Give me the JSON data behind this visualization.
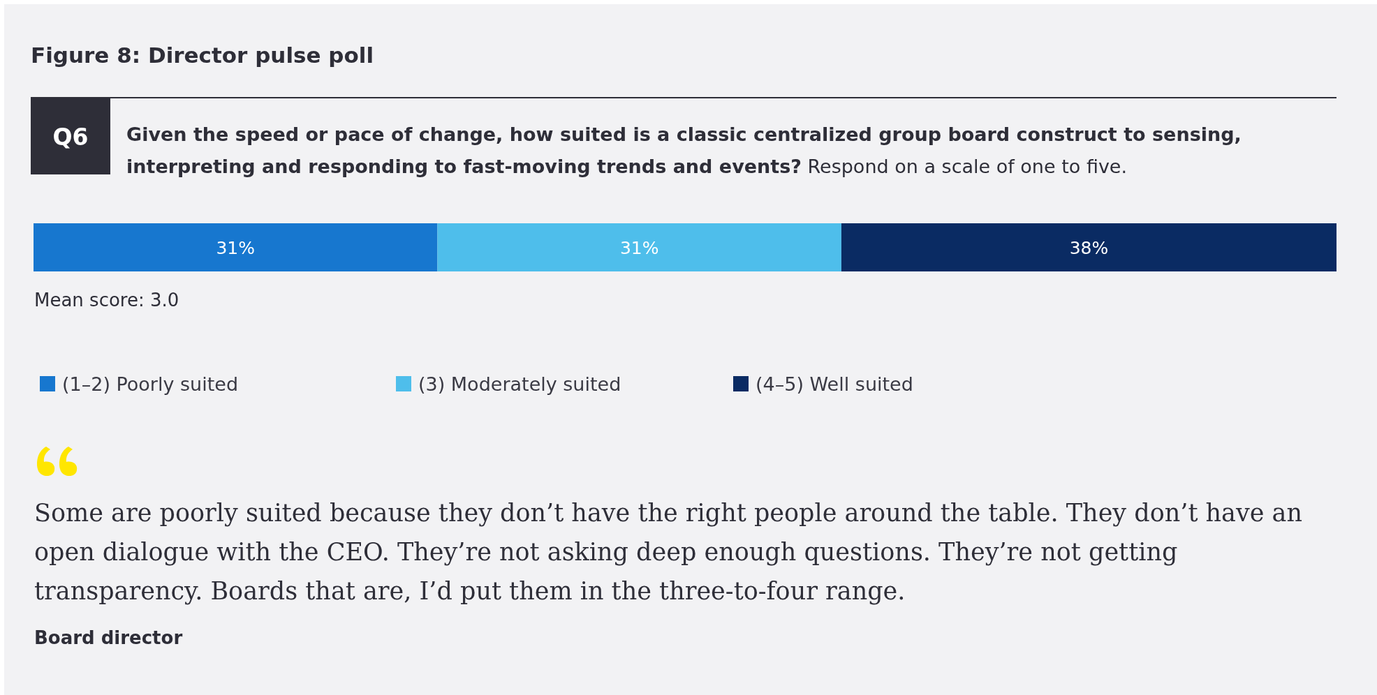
{
  "chart_data": {
    "type": "bar",
    "orientation": "horizontal",
    "stacked": true,
    "title": "Figure 8: Director pulse poll",
    "subtitle": "Given the speed or pace of change, how suited is a classic centralized group board construct to sensing, interpreting and responding to fast-moving trends and events?",
    "categories": [
      null
    ],
    "series": [
      {
        "name": "(1–2) Poorly suited",
        "color": "#1777cf",
        "values": [
          31
        ],
        "value_labels": [
          "31%"
        ]
      },
      {
        "name": "(3) Moderately suited",
        "color": "#4ebeeb",
        "values": [
          31
        ],
        "value_labels": [
          "31%"
        ]
      },
      {
        "name": "(4–5) Well suited",
        "color": "#0a2b63",
        "values": [
          38
        ],
        "value_labels": [
          "38%"
        ]
      }
    ],
    "legend": "bottom",
    "annotations": [
      "Q6",
      "Respond on a scale of one to five.",
      "Mean score: 3.0",
      "Some are poorly suited because they don’t have the right people around the table. They don’t have an open dialogue with the CEO. They’re not asking deep enough questions. They’re not getting transparency. Boards that are, I’d put them in the three-to-four range.",
      "Board director"
    ]
  }
}
